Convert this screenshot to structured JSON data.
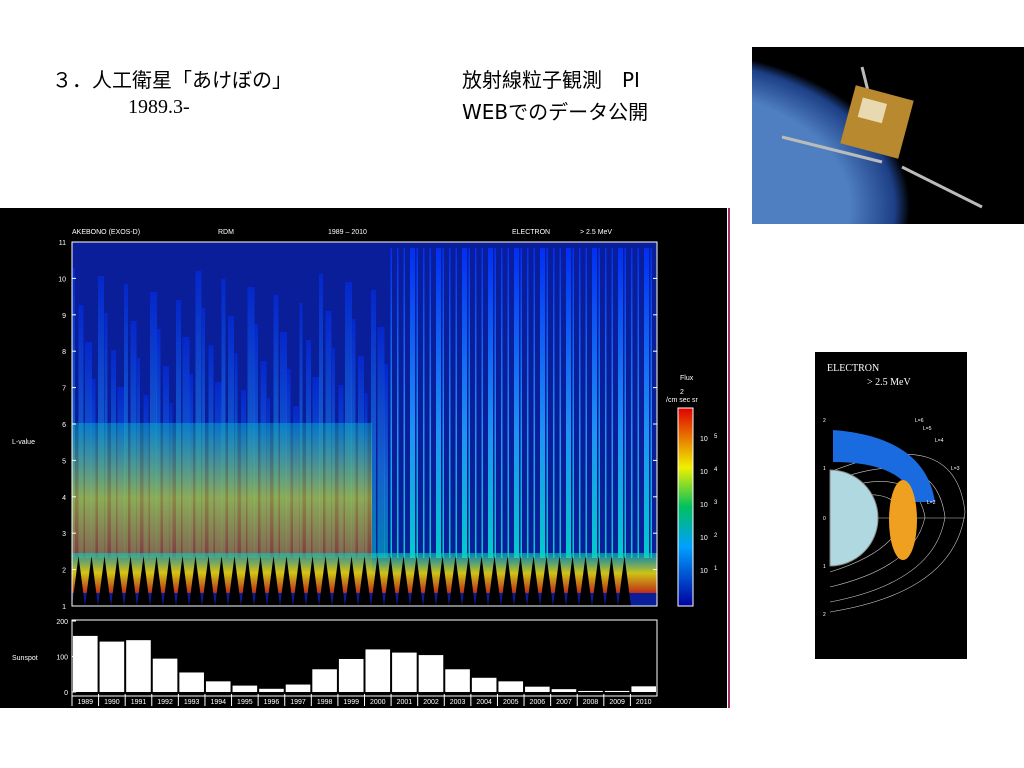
{
  "header": {
    "title": "３．人工衛星「あけぼの」",
    "date": "1989.3-",
    "right_line1": "放射線粒子観測　PI",
    "right_line2": "WEBでのデータ公開"
  },
  "figure": {
    "labels": [
      "AKEBONO (EXOS-D)",
      "RDM",
      "1989 – 2010",
      "ELECTRON",
      "> 2.5 MeV"
    ],
    "y_label": "L-value",
    "lticks": [
      1,
      2,
      3,
      4,
      5,
      6,
      7,
      8,
      9,
      10,
      11
    ],
    "colorbar": {
      "title": "Flux",
      "unit_power": "2",
      "unit": "/cm sec sr",
      "ticks": [
        {
          "base": "10",
          "exp": "5"
        },
        {
          "base": "10",
          "exp": "4"
        },
        {
          "base": "10",
          "exp": "3"
        },
        {
          "base": "10",
          "exp": "2"
        },
        {
          "base": "10",
          "exp": "1"
        }
      ]
    },
    "sunspot": {
      "label": "Sunspot",
      "ylim": [
        0,
        200
      ],
      "yticks": [
        0,
        100,
        200
      ],
      "years": [
        "1989",
        "1990",
        "1991",
        "1992",
        "1993",
        "1994",
        "1995",
        "1996",
        "1997",
        "1998",
        "1999",
        "2000",
        "2001",
        "2002",
        "2003",
        "2004",
        "2005",
        "2006",
        "2007",
        "2008",
        "2009",
        "2010"
      ],
      "values": [
        158,
        142,
        146,
        94,
        55,
        30,
        18,
        9,
        21,
        64,
        93,
        120,
        111,
        104,
        64,
        40,
        30,
        15,
        8,
        3,
        3,
        16
      ]
    }
  },
  "inset": {
    "title": "ELECTRON",
    "energy": "> 2.5 MeV",
    "shells": [
      "L=6",
      "L=5",
      "L=4",
      "L=3",
      "L=2"
    ],
    "ticks": [
      "2",
      "1",
      "0",
      "1",
      "2"
    ]
  }
}
